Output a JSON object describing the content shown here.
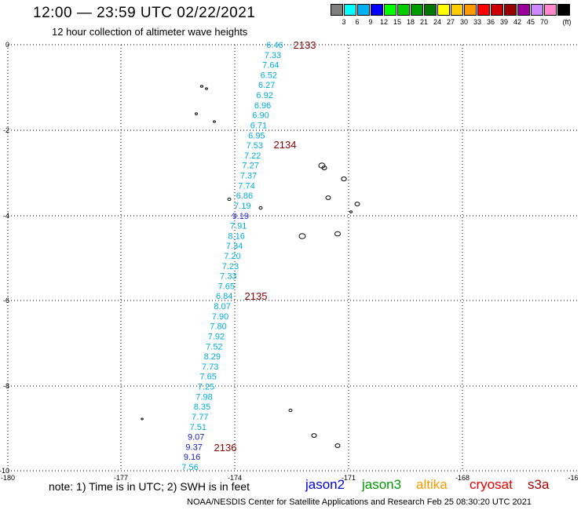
{
  "header": {
    "title": "12:00 — 23:59 UTC 02/22/2021",
    "subtitle": "12 hour collection of altimeter wave heights"
  },
  "legend": {
    "unit": "(ft)",
    "swatches": [
      {
        "color": "#808080",
        "label": ""
      },
      {
        "color": "#00ffff",
        "label": "3"
      },
      {
        "color": "#00b0f0",
        "label": "6"
      },
      {
        "color": "#0000ff",
        "label": "9"
      },
      {
        "color": "#00ff00",
        "label": "12"
      },
      {
        "color": "#00cc00",
        "label": "15"
      },
      {
        "color": "#009900",
        "label": "18"
      },
      {
        "color": "#007700",
        "label": "21"
      },
      {
        "color": "#ffff00",
        "label": "24"
      },
      {
        "color": "#ffcc00",
        "label": "27"
      },
      {
        "color": "#ff9900",
        "label": "30"
      },
      {
        "color": "#ff0000",
        "label": "33"
      },
      {
        "color": "#cc0000",
        "label": "36"
      },
      {
        "color": "#990000",
        "label": "39"
      },
      {
        "color": "#990099",
        "label": "42"
      },
      {
        "color": "#cc88ff",
        "label": "45"
      },
      {
        "color": "#ff88cc",
        "label": "70"
      },
      {
        "color": "#000000",
        "label": ""
      }
    ]
  },
  "map": {
    "lon_range": [
      -180,
      -165
    ],
    "lat_range": [
      -10,
      0
    ],
    "grid": true,
    "x_ticks": [
      "-180",
      "-177",
      "-174",
      "-171",
      "-168",
      "-16"
    ],
    "y_ticks": [
      "0",
      "-2",
      "-4",
      "-6",
      "-8",
      "-10"
    ]
  },
  "observations": [
    {
      "v": "6.46",
      "c": "#00aadd"
    },
    {
      "v": "7.33",
      "c": "#00aadd"
    },
    {
      "v": "7.64",
      "c": "#00aadd"
    },
    {
      "v": "6.52",
      "c": "#00aadd"
    },
    {
      "v": "6.27",
      "c": "#00aadd"
    },
    {
      "v": "6.92",
      "c": "#00aadd"
    },
    {
      "v": "6.96",
      "c": "#00aadd"
    },
    {
      "v": "6.90",
      "c": "#00aadd"
    },
    {
      "v": "6.71",
      "c": "#00aadd"
    },
    {
      "v": "6.95",
      "c": "#00aadd"
    },
    {
      "v": "7.53",
      "c": "#00aadd"
    },
    {
      "v": "7.22",
      "c": "#00aadd"
    },
    {
      "v": "7.27",
      "c": "#00aadd"
    },
    {
      "v": "7.37",
      "c": "#00aadd"
    },
    {
      "v": "7.74",
      "c": "#00aadd"
    },
    {
      "v": "6.86",
      "c": "#00aadd"
    },
    {
      "v": "7.19",
      "c": "#00aadd"
    },
    {
      "v": "9.19",
      "c": "#1a1aff"
    },
    {
      "v": "7.91",
      "c": "#00aadd"
    },
    {
      "v": "8.16",
      "c": "#00aadd"
    },
    {
      "v": "7.34",
      "c": "#00aadd"
    },
    {
      "v": "7.20",
      "c": "#00aadd"
    },
    {
      "v": "7.23",
      "c": "#00aadd"
    },
    {
      "v": "7.33",
      "c": "#00aadd"
    },
    {
      "v": "7.65",
      "c": "#00aadd"
    },
    {
      "v": "6.84",
      "c": "#00aadd"
    },
    {
      "v": "8.07",
      "c": "#00aadd"
    },
    {
      "v": "7.90",
      "c": "#00aadd"
    },
    {
      "v": "7.80",
      "c": "#00aadd"
    },
    {
      "v": "7.92",
      "c": "#00aadd"
    },
    {
      "v": "7.52",
      "c": "#00aadd"
    },
    {
      "v": "8.29",
      "c": "#00aadd"
    },
    {
      "v": "7.73",
      "c": "#00aadd"
    },
    {
      "v": "7.65",
      "c": "#00aadd"
    },
    {
      "v": "7.25",
      "c": "#00aadd"
    },
    {
      "v": "7.98",
      "c": "#00aadd"
    },
    {
      "v": "8.35",
      "c": "#00aadd"
    },
    {
      "v": "7.77",
      "c": "#00aadd"
    },
    {
      "v": "7.51",
      "c": "#00aadd"
    },
    {
      "v": "9.07",
      "c": "#1a1acc"
    },
    {
      "v": "9.37",
      "c": "#1a1acc"
    },
    {
      "v": "9.16",
      "c": "#1a1acc"
    },
    {
      "v": "7.56",
      "c": "#00aadd"
    }
  ],
  "pass_times": [
    {
      "label": "2133",
      "color": "#880000"
    },
    {
      "label": "2134",
      "color": "#880000"
    },
    {
      "label": "2135",
      "color": "#880000"
    },
    {
      "label": "2136",
      "color": "#880000"
    }
  ],
  "footer": {
    "note": "note:  1) Time is in UTC;  2) SWH is in feet",
    "satellites": [
      {
        "name": "jason2",
        "color": "#0000ee"
      },
      {
        "name": "jason3",
        "color": "#009900"
      },
      {
        "name": "altika",
        "color": "#ff9900"
      },
      {
        "name": "cryosat",
        "color": "#ee0000"
      },
      {
        "name": "s3a",
        "color": "#aa0000"
      }
    ],
    "credit": "NOAA/NESDIS Center for Satellite Applications and Research   Feb 25 08:30:20 UTC 2021"
  }
}
